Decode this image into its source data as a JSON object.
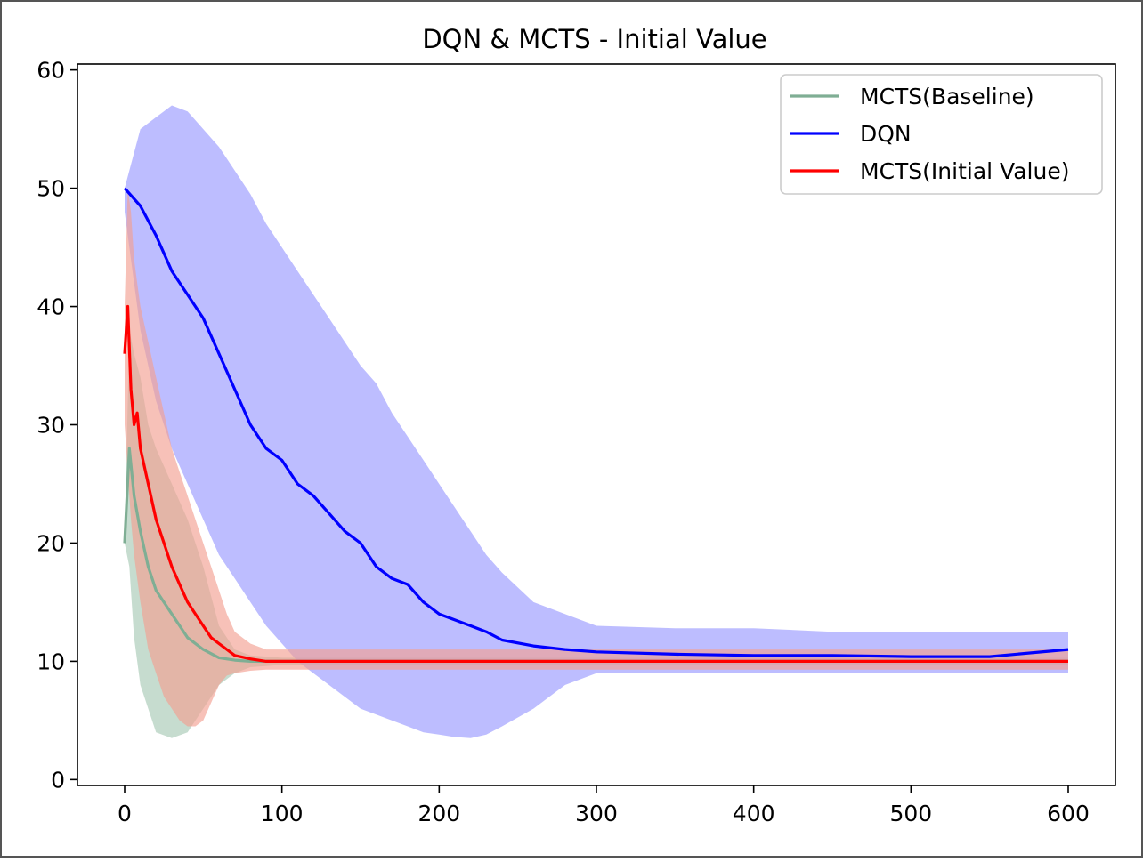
{
  "chart_data": {
    "type": "line",
    "title": "DQN & MCTS - Initial Value",
    "xlabel": "",
    "ylabel": "",
    "xlim": [
      -30,
      630
    ],
    "ylim": [
      -0.5,
      60.5
    ],
    "x_ticks": [
      0,
      100,
      200,
      300,
      400,
      500,
      600
    ],
    "y_ticks": [
      0,
      10,
      20,
      30,
      40,
      50,
      60
    ],
    "grid": false,
    "legend": {
      "placement": "top-right",
      "entries": [
        "MCTS(Baseline)",
        "DQN",
        "MCTS(Initial Value)"
      ]
    },
    "bands_note": "shaded regions show spread around each mean line",
    "series": [
      {
        "name": "MCTS(Baseline)",
        "color": "#7fae94",
        "band_color": "#a7c9b5",
        "x": [
          0,
          3,
          6,
          10,
          15,
          20,
          30,
          40,
          50,
          60,
          70,
          80,
          100,
          150,
          200,
          300,
          400,
          500,
          600
        ],
        "y": [
          20,
          28,
          24,
          21,
          18,
          16,
          14,
          12,
          11,
          10.3,
          10.1,
          10,
          10,
          10,
          10,
          10,
          10,
          10,
          10
        ],
        "lower": [
          20,
          18,
          12,
          8,
          6,
          4,
          3.5,
          4,
          6,
          8,
          9,
          9.5,
          9.7,
          9.7,
          9.7,
          9.7,
          9.7,
          9.7,
          9.7
        ],
        "upper": [
          20,
          38,
          36,
          34,
          30,
          28,
          25,
          22,
          18,
          13,
          11,
          10.5,
          10.3,
          10.3,
          10.3,
          10.3,
          10.3,
          10.3,
          10.3
        ]
      },
      {
        "name": "DQN",
        "color": "#0000ff",
        "band_color": "#9999ff",
        "x": [
          0,
          10,
          20,
          30,
          40,
          50,
          60,
          70,
          80,
          90,
          100,
          110,
          120,
          130,
          140,
          150,
          160,
          170,
          180,
          190,
          200,
          210,
          220,
          230,
          240,
          260,
          280,
          300,
          350,
          400,
          450,
          500,
          550,
          600
        ],
        "y": [
          50,
          48.5,
          46,
          43,
          41,
          39,
          36,
          33,
          30,
          28,
          27,
          25,
          24,
          22.5,
          21,
          20,
          18,
          17,
          16.5,
          15,
          14,
          13.5,
          13,
          12.5,
          11.8,
          11.3,
          11,
          10.8,
          10.6,
          10.5,
          10.5,
          10.4,
          10.4,
          11
        ],
        "lower": [
          48,
          38,
          32,
          28,
          25,
          22,
          19,
          17,
          15,
          13,
          11.5,
          10,
          9,
          8,
          7,
          6,
          5.5,
          5,
          4.5,
          4,
          3.8,
          3.6,
          3.5,
          3.8,
          4.5,
          6,
          8,
          9,
          9,
          9,
          9,
          9,
          9,
          9
        ],
        "upper": [
          50,
          55,
          56,
          57,
          56.5,
          55,
          53.5,
          51.5,
          49.5,
          47,
          45,
          43,
          41,
          39,
          37,
          35,
          33.5,
          31,
          29,
          27,
          25,
          23,
          21,
          19,
          17.5,
          15,
          14,
          13,
          12.8,
          12.8,
          12.5,
          12.5,
          12.5,
          12.5
        ]
      },
      {
        "name": "MCTS(Initial Value)",
        "color": "#ff0000",
        "band_color": "#f3a092",
        "x": [
          0,
          2,
          4,
          6,
          8,
          10,
          15,
          20,
          25,
          30,
          35,
          40,
          45,
          50,
          55,
          60,
          65,
          70,
          80,
          90,
          100,
          135,
          200,
          300,
          400,
          500,
          600
        ],
        "y": [
          36,
          40,
          33,
          30,
          31,
          28,
          25,
          22,
          20,
          18,
          16.5,
          15,
          14,
          13,
          12,
          11.5,
          11,
          10.5,
          10.2,
          10,
          10,
          10,
          10,
          10,
          10,
          10,
          10
        ],
        "lower": [
          30,
          26,
          22,
          19,
          17,
          15,
          11,
          9,
          7,
          6,
          5,
          4.5,
          4.5,
          5,
          6.5,
          8,
          8.8,
          9,
          9.2,
          9.3,
          9.3,
          9.3,
          9.3,
          9.3,
          9.3,
          9.3,
          9.3
        ],
        "upper": [
          40,
          50,
          48,
          44,
          42,
          40,
          37,
          34,
          31,
          28,
          26,
          24,
          22,
          20,
          18,
          16,
          14,
          12.5,
          11.5,
          11,
          11,
          11,
          11,
          11,
          11,
          11,
          11
        ]
      }
    ]
  }
}
